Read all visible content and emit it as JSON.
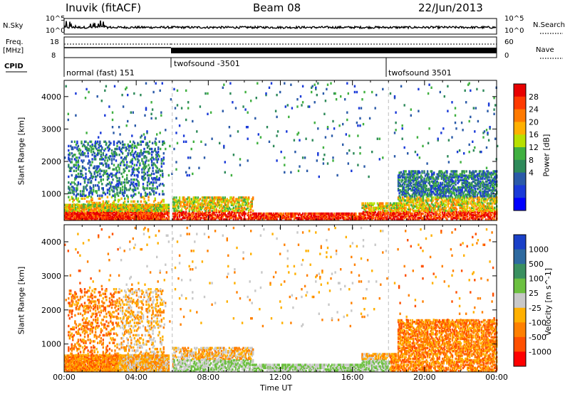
{
  "header": {
    "station": "Inuvik (fitACF)",
    "beam": "Beam 08",
    "date": "22/Jun/2013"
  },
  "top_panels": {
    "nsky_label": "N.Sky",
    "nsky_ticks": [
      "10^5",
      "10^0"
    ],
    "nsearch_label": "N.Search",
    "nsearch_ticks": [
      "10^5",
      "10^0"
    ],
    "freq_label": "Freq.",
    "freq_unit": "[MHz]",
    "freq_ticks": [
      "18",
      "8"
    ],
    "nave_label": "Nave",
    "nave_ticks": [
      "60",
      "0"
    ],
    "cpid_label": "CPID",
    "cpid_segments": [
      {
        "label": "normal (fast) 151",
        "start_hour": 0
      },
      {
        "label": "twofsound -3501",
        "start_hour": 6
      },
      {
        "label": "twofsound 3501",
        "start_hour": 18
      }
    ]
  },
  "chart_data": [
    {
      "type": "heatmap",
      "title": "",
      "xlabel": "",
      "ylabel": "Slant Range [km]",
      "xlim": [
        0,
        24
      ],
      "ylim": [
        180,
        4500
      ],
      "yticks": [
        1000,
        2000,
        3000,
        4000
      ],
      "colorbar": {
        "label": "Power [dB]",
        "ticks": [
          "28",
          "24",
          "20",
          "16",
          "12",
          "8",
          "4"
        ],
        "colors": [
          "#e80000",
          "#ff3a00",
          "#ff7a00",
          "#ffb000",
          "#b8e000",
          "#40b040",
          "#2e8a5a",
          "#2a5aa8",
          "#1a3ad8",
          "#0000ff"
        ]
      }
    },
    {
      "type": "heatmap",
      "title": "",
      "xlabel": "Time UT",
      "ylabel": "Slant Range [km]",
      "xlim": [
        0,
        24
      ],
      "ylim": [
        180,
        4500
      ],
      "yticks": [
        1000,
        2000,
        3000,
        4000
      ],
      "colorbar": {
        "label": "Velocity [m s^-1]",
        "ticks": [
          "1000",
          "500",
          "100",
          "25",
          "-25",
          "-100",
          "-500",
          "-1000"
        ],
        "colors": [
          "#1a40c8",
          "#2e6aa0",
          "#3a9060",
          "#6cc040",
          "#c8c8c8",
          "#ffb000",
          "#ff8000",
          "#ff5000",
          "#ff0000"
        ]
      }
    }
  ],
  "xaxis": {
    "ticks": [
      "00:00",
      "04:00",
      "08:00",
      "12:00",
      "16:00",
      "20:00",
      "00:00"
    ],
    "label": "Time UT"
  }
}
